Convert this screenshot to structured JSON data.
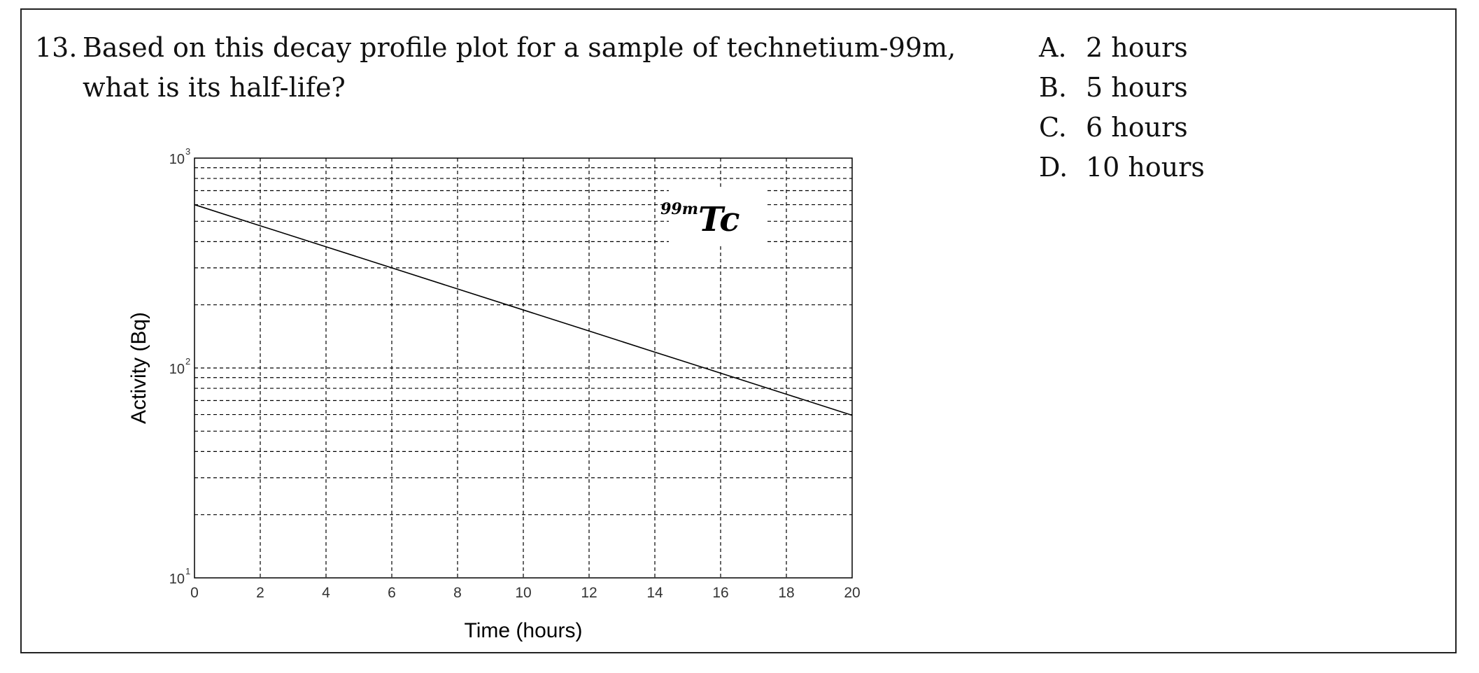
{
  "question": {
    "number": "13.",
    "text": "Based on this decay profile plot for a sample of technetium-99m, what is its half-life?"
  },
  "choices": [
    {
      "letter": "A.",
      "text": "2 hours"
    },
    {
      "letter": "B.",
      "text": "5 hours"
    },
    {
      "letter": "C.",
      "text": "6 hours"
    },
    {
      "letter": "D.",
      "text": "10 hours"
    }
  ],
  "chart_data": {
    "type": "line",
    "title": "",
    "annotation": {
      "mass_number": "99m",
      "symbol": "Tc"
    },
    "xlabel": "Time (hours)",
    "ylabel": "Activity (Bq)",
    "xlim": [
      0,
      20
    ],
    "ylim": [
      10,
      1000
    ],
    "yscale": "log",
    "grid": true,
    "x_ticks": [
      "0",
      "2",
      "4",
      "6",
      "8",
      "10",
      "12",
      "14",
      "16",
      "18",
      "20"
    ],
    "y_ticks": [
      {
        "value": 10,
        "base": "10",
        "exp": "1"
      },
      {
        "value": 100,
        "base": "10",
        "exp": "2"
      },
      {
        "value": 1000,
        "base": "10",
        "exp": "3"
      }
    ],
    "series": [
      {
        "x": [
          0,
          2,
          4,
          6,
          8,
          10,
          12,
          14,
          16,
          18,
          20
        ],
        "y": [
          600,
          476,
          378,
          300,
          238,
          189,
          150,
          119,
          94.5,
          75,
          59.5
        ]
      }
    ]
  }
}
